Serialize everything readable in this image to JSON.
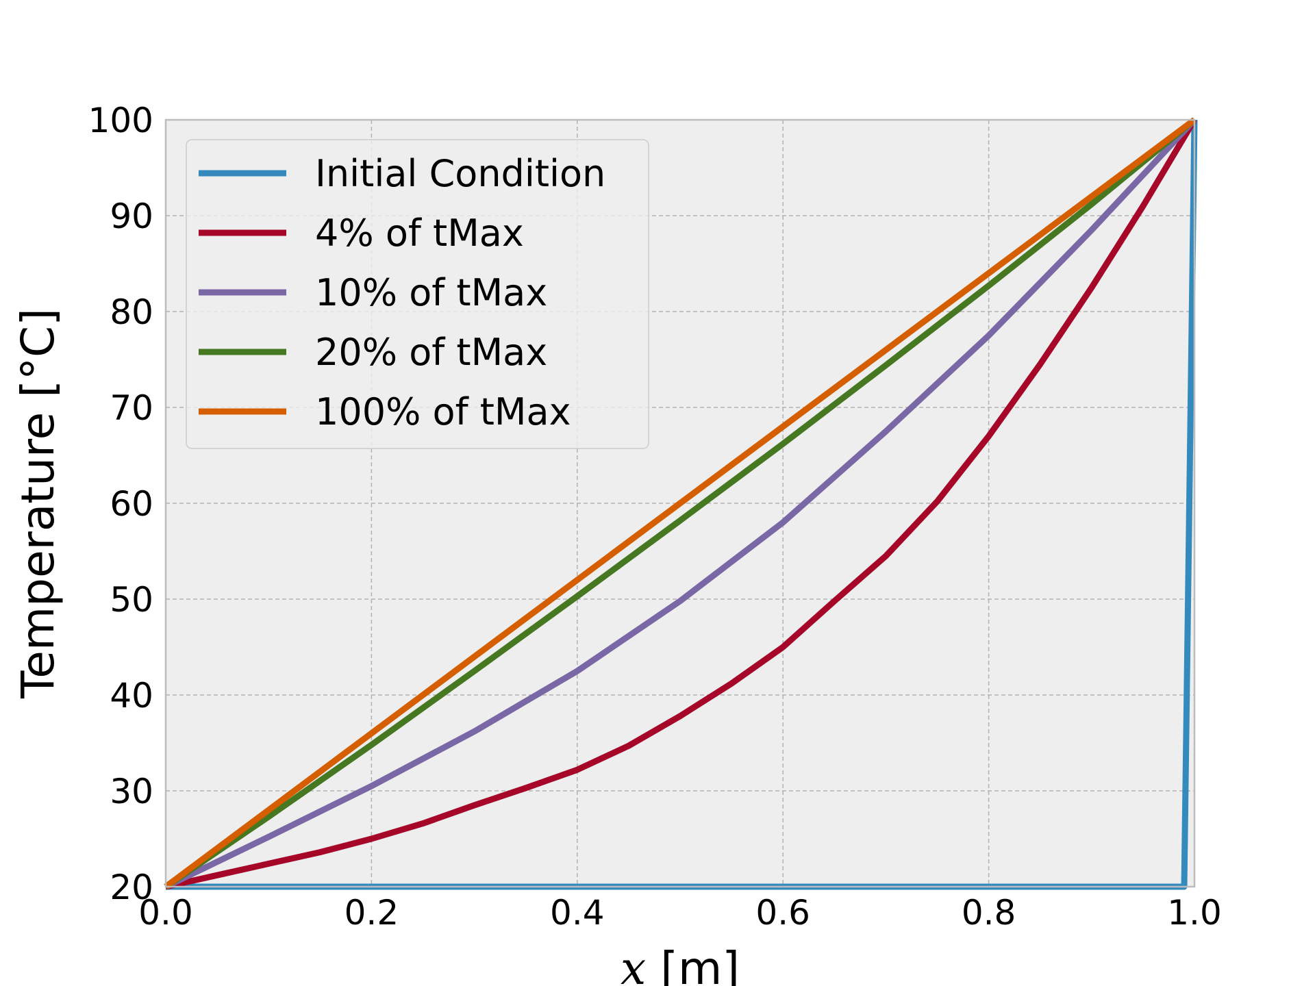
{
  "chart_data": {
    "type": "line",
    "title": "",
    "xlabel_var": "x",
    "xlabel_unit": " [m]",
    "ylabel": "Temperature [°C]",
    "xlim": [
      0.0,
      1.0
    ],
    "ylim": [
      20,
      100
    ],
    "xticks": [
      "0.0",
      "0.2",
      "0.4",
      "0.6",
      "0.8",
      "1.0"
    ],
    "yticks": [
      "20",
      "30",
      "40",
      "50",
      "60",
      "70",
      "80",
      "90",
      "100"
    ],
    "grid": true,
    "legend_position": "top-left",
    "plot_background": "#eeeeee",
    "series": [
      {
        "name": "Initial Condition",
        "color": "#348abd",
        "x": [
          0.0,
          0.2,
          0.4,
          0.6,
          0.8,
          0.99,
          1.0
        ],
        "y": [
          20,
          20,
          20,
          20,
          20,
          20,
          100
        ]
      },
      {
        "name": "4% of tMax",
        "color": "#a60628",
        "x": [
          0.0,
          0.05,
          0.1,
          0.15,
          0.2,
          0.25,
          0.3,
          0.35,
          0.4,
          0.45,
          0.5,
          0.55,
          0.6,
          0.65,
          0.7,
          0.75,
          0.8,
          0.85,
          0.9,
          0.95,
          1.0
        ],
        "y": [
          20,
          21.2,
          22.4,
          23.6,
          25.0,
          26.6,
          28.5,
          30.3,
          32.2,
          34.7,
          37.8,
          41.2,
          45.0,
          49.8,
          54.5,
          60.2,
          67.0,
          74.5,
          82.5,
          91.0,
          100
        ]
      },
      {
        "name": "10% of tMax",
        "color": "#7a68a6",
        "x": [
          0.0,
          0.1,
          0.2,
          0.3,
          0.4,
          0.5,
          0.6,
          0.7,
          0.8,
          0.9,
          1.0
        ],
        "y": [
          20,
          25.2,
          30.5,
          36.2,
          42.5,
          49.8,
          58.0,
          67.5,
          77.5,
          88.5,
          100
        ]
      },
      {
        "name": "20% of tMax",
        "color": "#467821",
        "x": [
          0.0,
          0.1,
          0.2,
          0.3,
          0.4,
          0.5,
          0.6,
          0.7,
          0.8,
          0.9,
          1.0
        ],
        "y": [
          20,
          27.3,
          34.8,
          42.5,
          50.3,
          58.2,
          66.2,
          74.4,
          82.7,
          91.2,
          100
        ]
      },
      {
        "name": "100% of tMax",
        "color": "#d55e00",
        "x": [
          0.0,
          1.0
        ],
        "y": [
          20,
          100
        ]
      }
    ]
  }
}
